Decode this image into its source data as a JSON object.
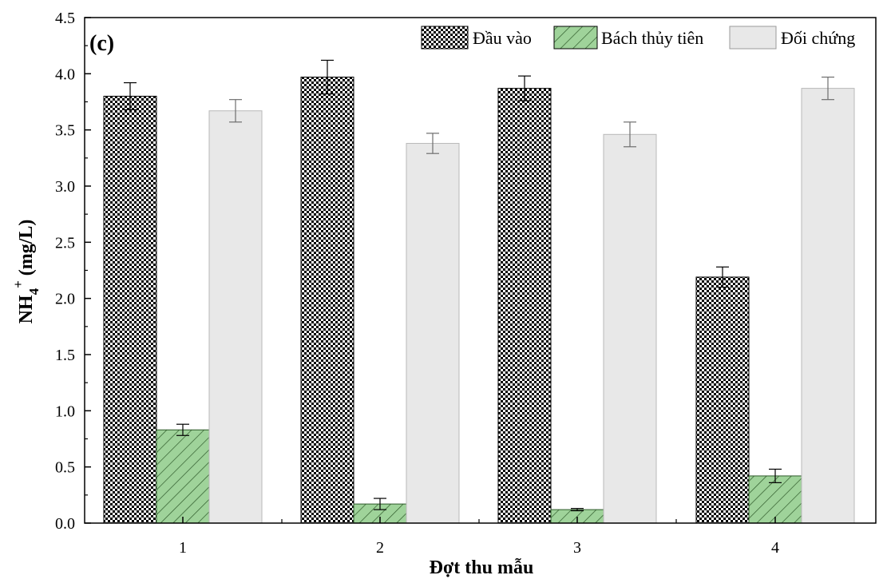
{
  "chart_data": {
    "type": "bar",
    "panel_label": "(c)",
    "xlabel": "Đợt thu mẫu",
    "ylabel": {
      "base": "NH",
      "sub": "4",
      "sup": "+",
      "unit": " (mg/L)"
    },
    "categories": [
      "1",
      "2",
      "3",
      "4"
    ],
    "ylim": [
      0,
      4.5
    ],
    "yticks": [
      "0.0",
      "0.5",
      "1.0",
      "1.5",
      "2.0",
      "2.5",
      "3.0",
      "3.5",
      "4.0",
      "4.5"
    ],
    "legend_position": "top-right",
    "grid": false,
    "series": [
      {
        "name": "Đầu vào",
        "pattern": "checkerboard",
        "color": "#000000",
        "values": [
          3.8,
          3.97,
          3.87,
          2.19
        ],
        "errors": [
          0.12,
          0.15,
          0.11,
          0.09
        ]
      },
      {
        "name": "Bách thủy tiên",
        "pattern": "diagonal-hatch",
        "color": "#9fd39a",
        "values": [
          0.83,
          0.17,
          0.12,
          0.42
        ],
        "errors": [
          0.05,
          0.05,
          0.01,
          0.06
        ]
      },
      {
        "name": "Đối chứng",
        "pattern": "solid",
        "color": "#e8e8e8",
        "values": [
          3.67,
          3.38,
          3.46,
          3.87
        ],
        "errors": [
          0.1,
          0.09,
          0.11,
          0.1
        ]
      }
    ]
  }
}
